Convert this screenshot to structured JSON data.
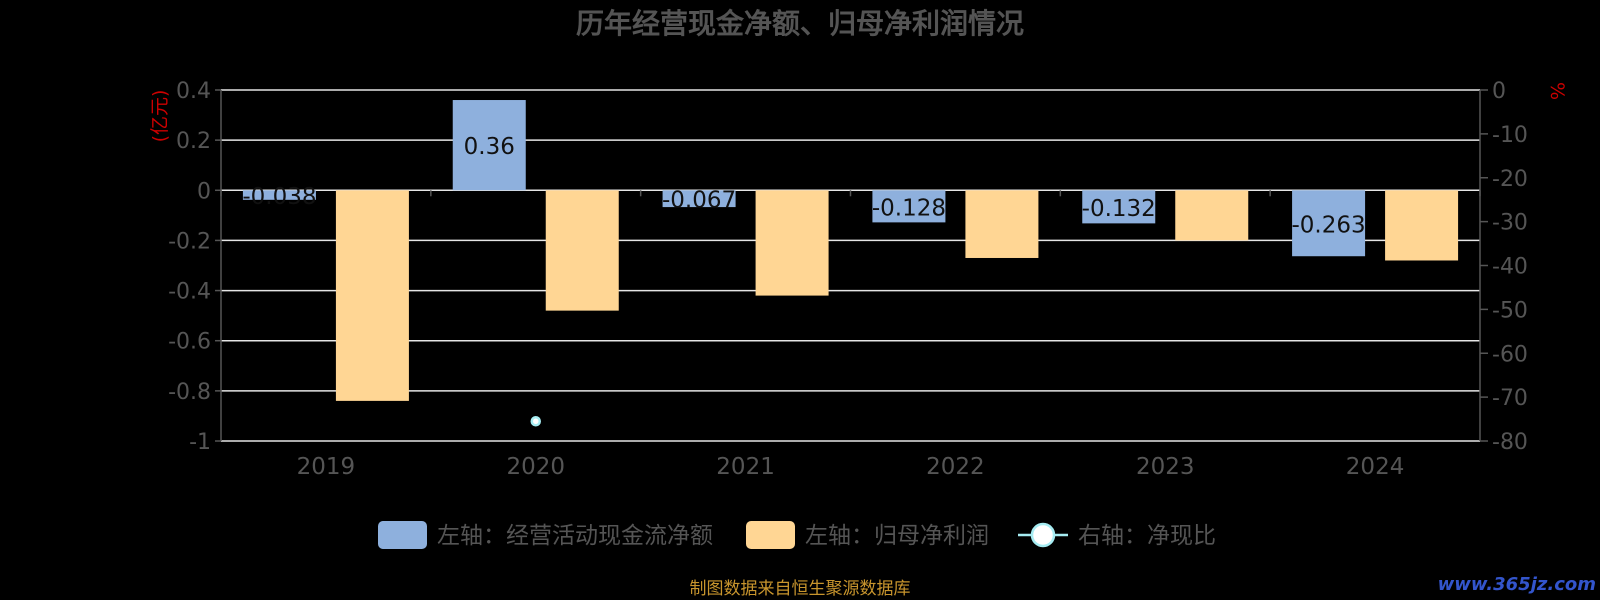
{
  "chart_data": {
    "type": "bar",
    "title": "历年经营现金净额、归母净利润情况",
    "categories": [
      "2019",
      "2020",
      "2021",
      "2022",
      "2023",
      "2024"
    ],
    "series": [
      {
        "name": "左轴：经营活动现金流净额",
        "axis": "left",
        "values": [
          -0.038,
          0.36,
          -0.067,
          -0.128,
          -0.132,
          -0.263
        ],
        "labels": [
          "-0.038",
          "0.36",
          "-0.067",
          "-0.128",
          "-0.132",
          "-0.263"
        ],
        "color": "#8eb0dd"
      },
      {
        "name": "左轴：归母净利润",
        "axis": "left",
        "values": [
          -0.84,
          -0.48,
          -0.42,
          -0.27,
          -0.2,
          -0.28
        ],
        "color": "#ffd694"
      },
      {
        "name": "右轴：净现比",
        "axis": "right",
        "type": "scatter",
        "values": [
          null,
          -75.5,
          null,
          null,
          null,
          null
        ],
        "color": "#a6ecf2"
      }
    ],
    "left_axis": {
      "unit": "(亿元)",
      "ylim": [
        -1,
        0.4
      ],
      "ticks": [
        0.4,
        0.2,
        0,
        -0.2,
        -0.4,
        -0.6,
        -0.8,
        -1
      ],
      "tick_labels": [
        "0.4",
        "0.2",
        "0",
        "-0.2",
        "-0.4",
        "-0.6",
        "-0.8",
        "-1"
      ]
    },
    "right_axis": {
      "unit": "%",
      "ylim": [
        -80,
        0
      ],
      "ticks": [
        0,
        -10,
        -20,
        -30,
        -40,
        -50,
        -60,
        -70,
        -80
      ],
      "tick_labels": [
        "0",
        "-10",
        "-20",
        "-30",
        "-40",
        "-50",
        "-60",
        "-70",
        "-80"
      ]
    },
    "grid": true,
    "legend_position": "bottom"
  },
  "footer": {
    "source": "制图数据来自恒生聚源数据库"
  },
  "watermark": {
    "text": "www.365jz.com"
  },
  "colors": {
    "background": "#000000",
    "axis_text": "#555555",
    "gridline": "#e6e6e6",
    "unit_text": "#cc0000",
    "footer_text": "#c8952d",
    "watermark_text": "#3355cc"
  }
}
